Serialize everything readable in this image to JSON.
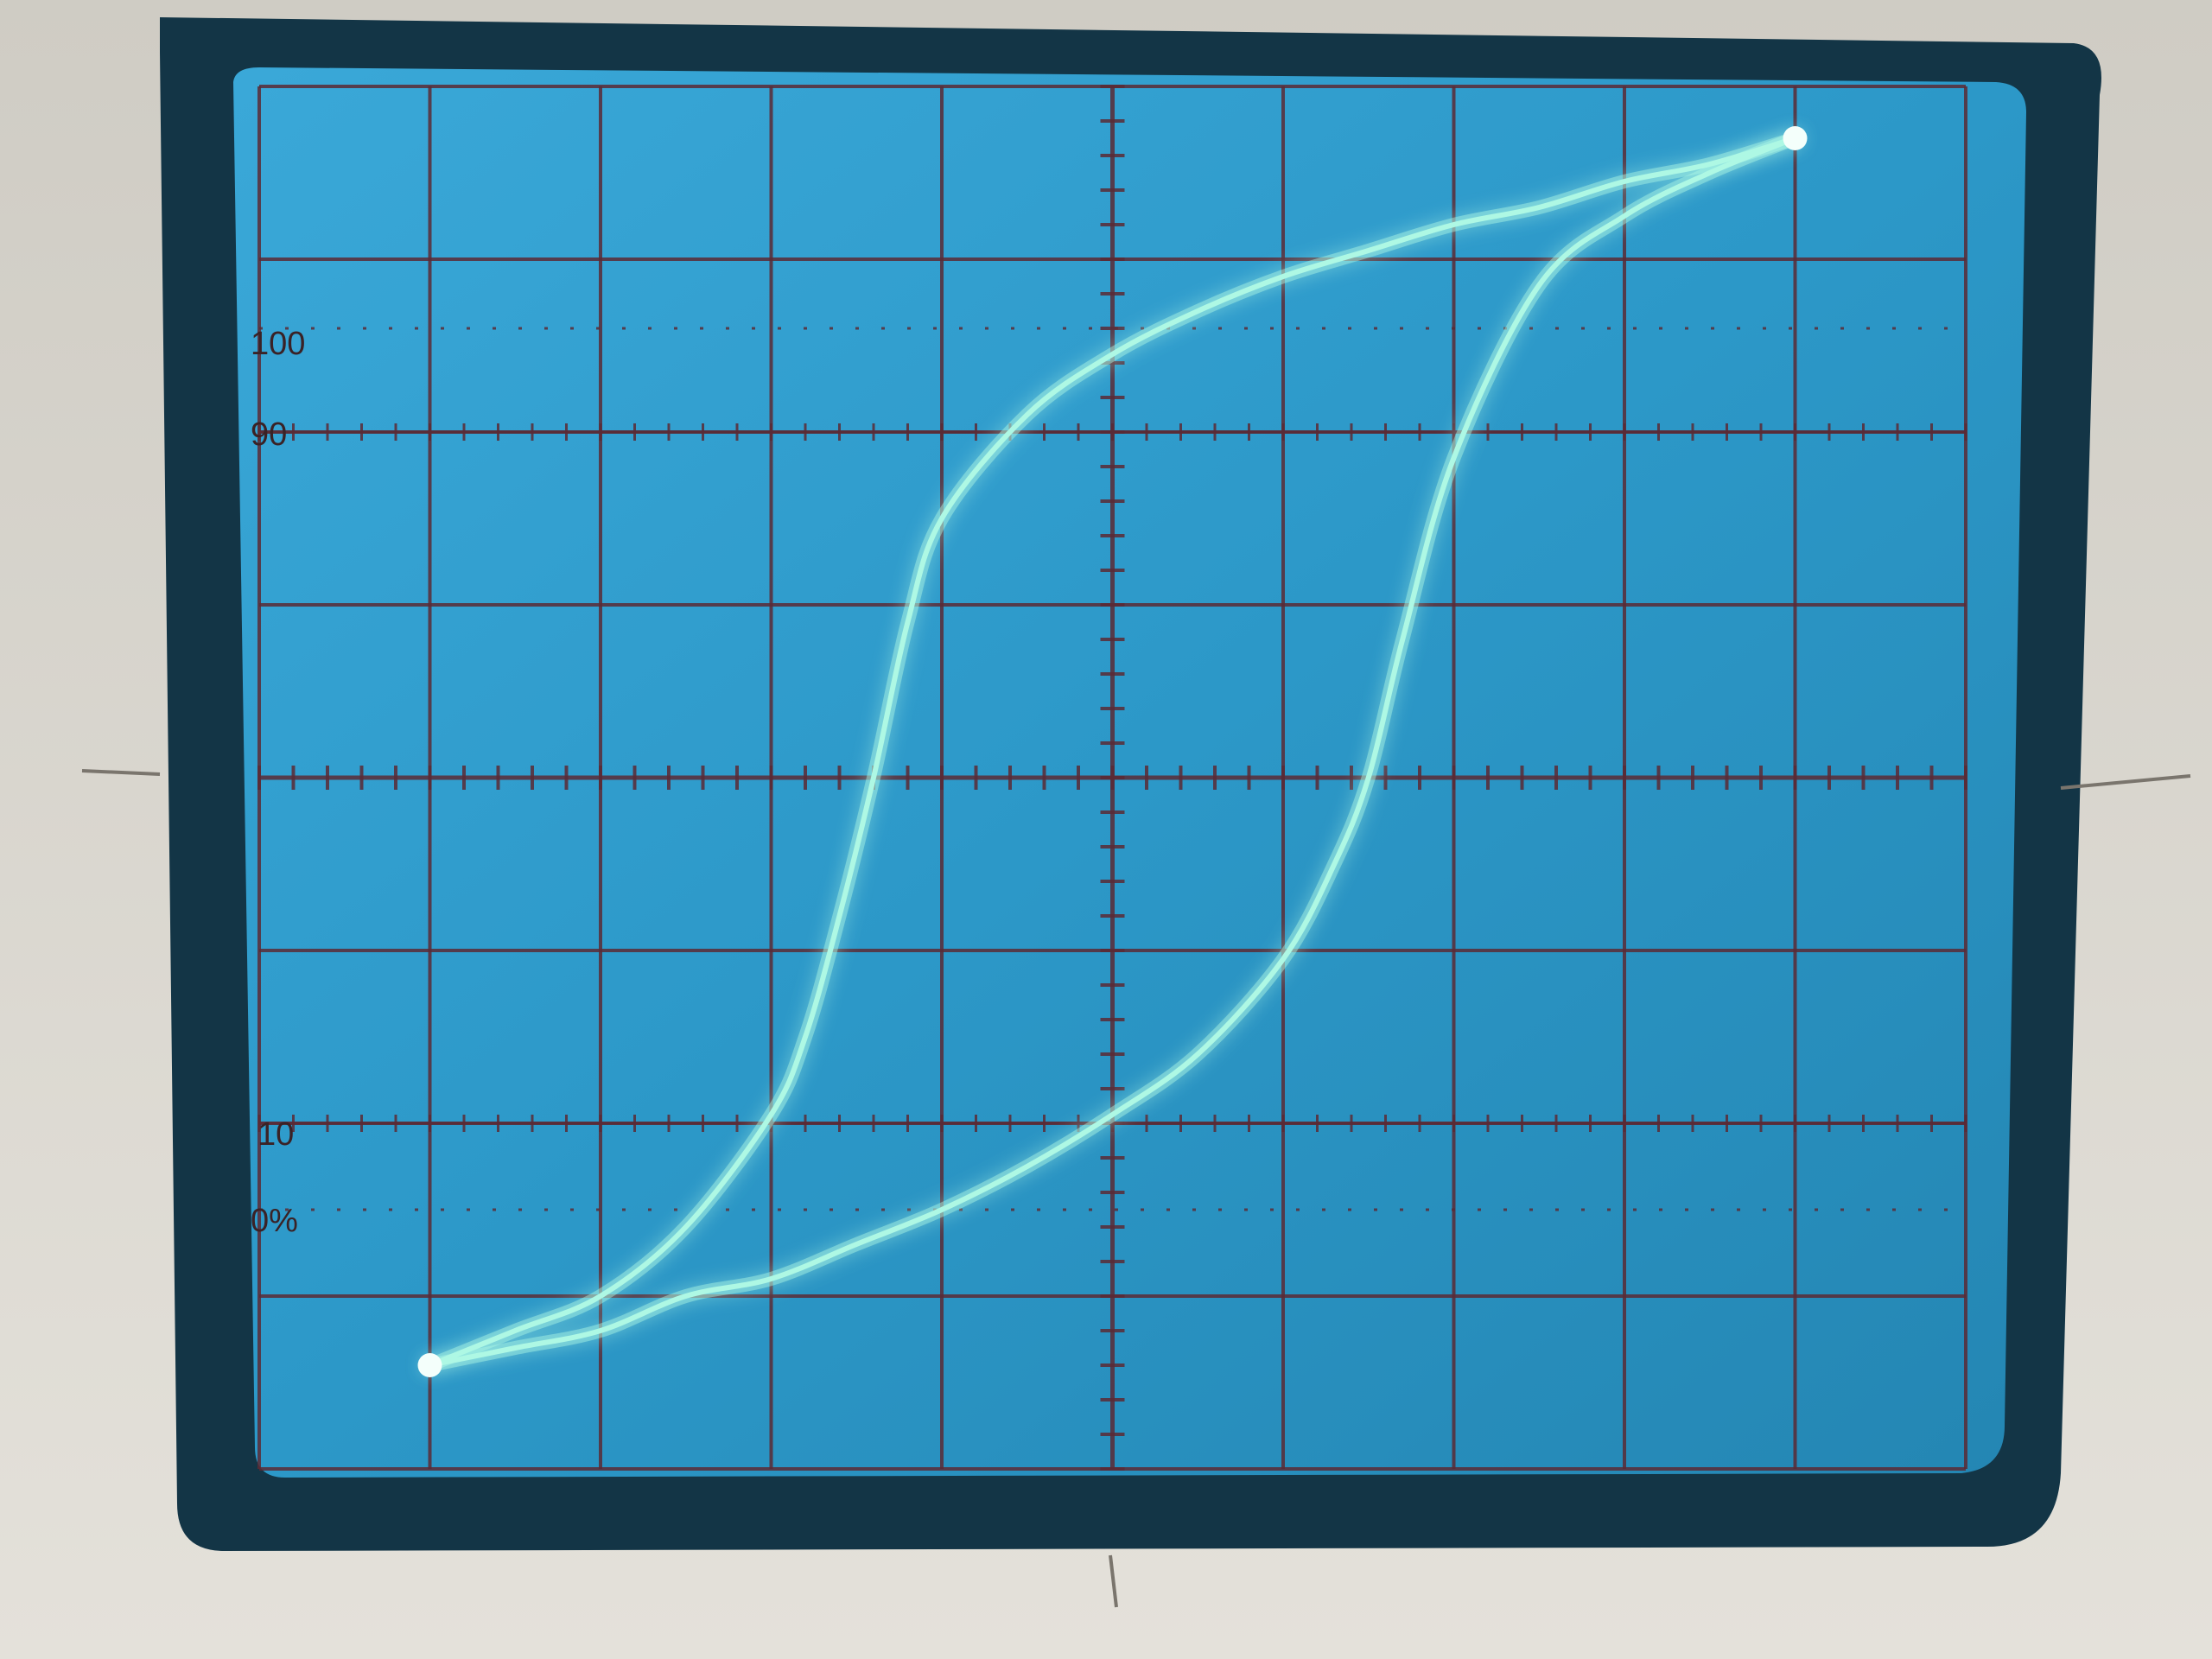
{
  "scale_labels": {
    "top_100": "100",
    "top_90": "90",
    "bottom_10": "10",
    "bottom_0": "0%"
  },
  "colors": {
    "bezel": "#d9d6cf",
    "screen_surround": "#123447",
    "screen": "#2f9fd0",
    "graticule": "#5a2a35",
    "trace": "#aef8e4"
  },
  "chart_data": {
    "type": "line",
    "title": "",
    "xlabel": "",
    "ylabel": "",
    "grid": true,
    "xlim": [
      -5,
      5
    ],
    "ylim": [
      -4,
      4
    ],
    "series": [
      {
        "x": [
          -4,
          -3.5,
          -3,
          -2.5,
          -2,
          -1.8,
          -1.6,
          -1.4,
          -1.2,
          -1,
          -0.5,
          0,
          0.5,
          1,
          1.5,
          2,
          2.5,
          3,
          3.5,
          4
        ],
        "y": [
          -3.4,
          -3.2,
          -3.0,
          -2.6,
          -1.95,
          -1.5,
          -0.8,
          0.0,
          0.9,
          1.5,
          2.1,
          2.45,
          2.7,
          2.9,
          3.05,
          3.2,
          3.3,
          3.45,
          3.55,
          3.7
        ]
      },
      {
        "x": [
          -4,
          -3.5,
          -3,
          -2.5,
          -2,
          -1.5,
          -1,
          -0.5,
          0,
          0.5,
          1,
          1.3,
          1.5,
          1.7,
          2,
          2.5,
          3,
          3.5,
          4
        ],
        "y": [
          -3.4,
          -3.3,
          -3.2,
          -3.0,
          -2.9,
          -2.7,
          -2.5,
          -2.25,
          -1.95,
          -1.6,
          -1.05,
          -0.5,
          0.0,
          0.8,
          1.85,
          2.85,
          3.25,
          3.5,
          3.7
        ]
      }
    ]
  }
}
